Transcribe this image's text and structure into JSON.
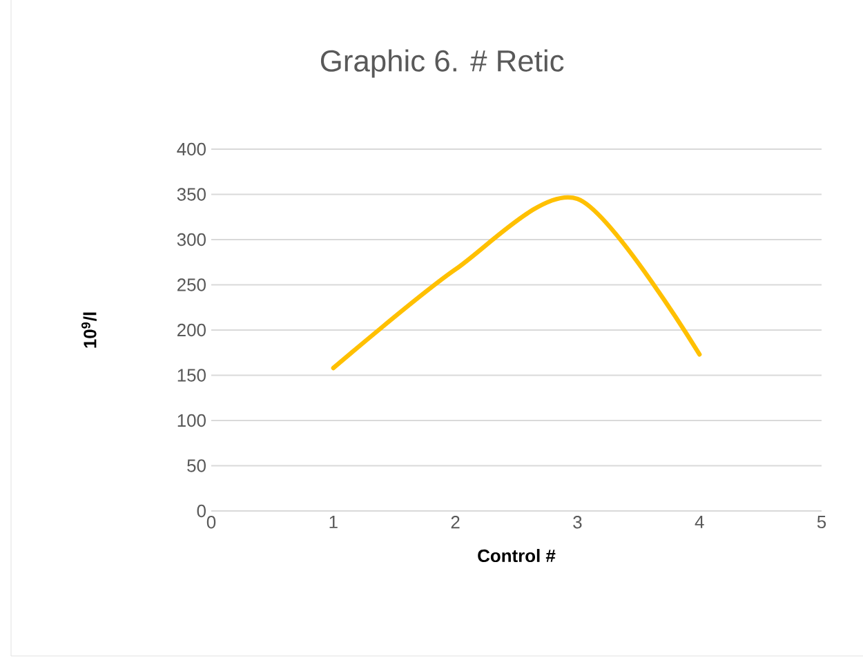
{
  "chart_data": {
    "type": "line",
    "title": "Graphic 6. # Retic",
    "xlabel": "Control #",
    "ylabel": "10$^{9}$/l",
    "x": [
      1,
      2,
      3,
      4
    ],
    "series": [
      {
        "color": "#ffc000",
        "values": [
          158,
          267,
          345,
          173
        ]
      }
    ],
    "xlim": [
      0,
      5
    ],
    "xticks": [
      0,
      1,
      2,
      3,
      4,
      5
    ],
    "ylim": [
      0,
      400
    ],
    "yticks": [
      0,
      50,
      100,
      150,
      200,
      250,
      300,
      350,
      400
    ],
    "grid": "y",
    "marker": "none",
    "line_style": "solid"
  }
}
